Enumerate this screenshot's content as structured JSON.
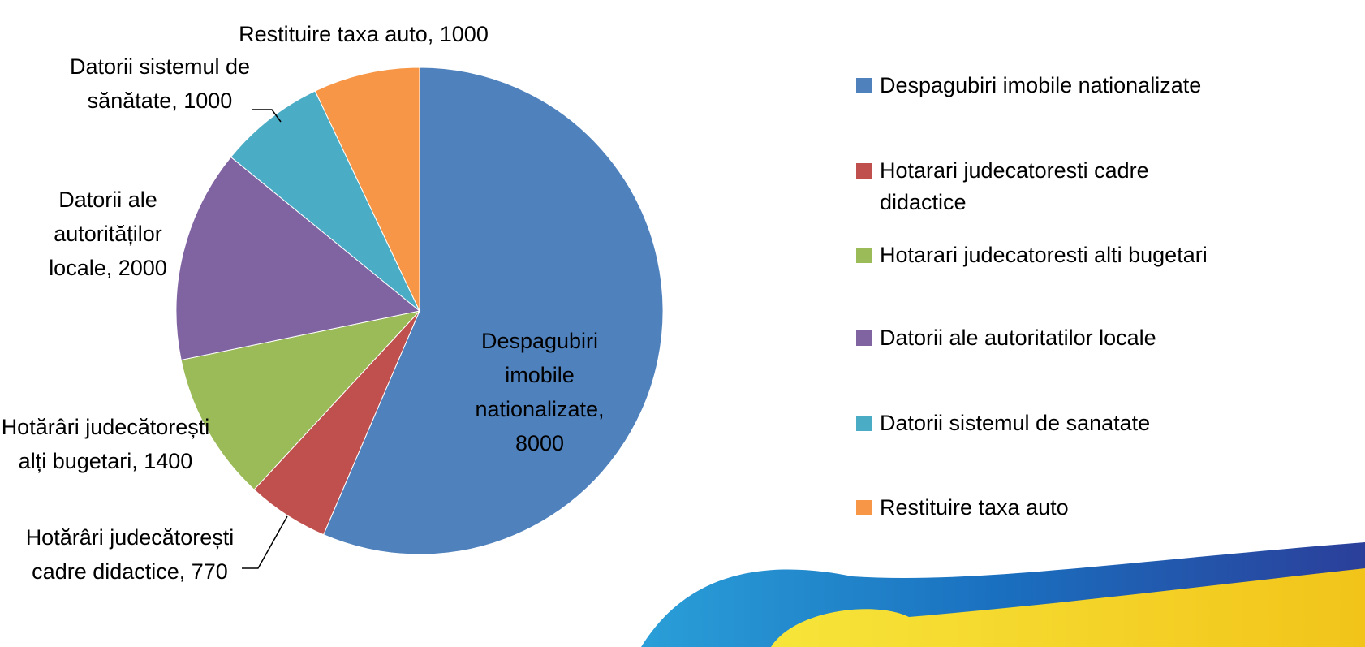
{
  "chart_data": {
    "type": "pie",
    "categories": [
      "Despagubiri imobile nationalizate",
      "Hotarari judecatoresti cadre didactice",
      "Hotarari judecatoresti alti bugetari",
      "Datorii ale autoritatilor locale",
      "Datorii sistemul de sanatate",
      "Restituire taxa auto"
    ],
    "values": [
      8000,
      770,
      1400,
      2000,
      1000,
      1000
    ],
    "value_labels": [
      "Despagubiri imobile nationalizate, 8000",
      "Hotărâri judecătorești cadre didactice, 770",
      "Hotărâri judecătorești alți bugetari, 1400",
      "Datorii ale autorităților locale, 2000",
      "Datorii sistemul de sănătate, 1000",
      "Restituire taxa auto, 1000"
    ],
    "colors": [
      "#4f81bd",
      "#c0504d",
      "#9bbb59",
      "#8064a2",
      "#4bacc6",
      "#f79646"
    ],
    "legend": "right"
  }
}
